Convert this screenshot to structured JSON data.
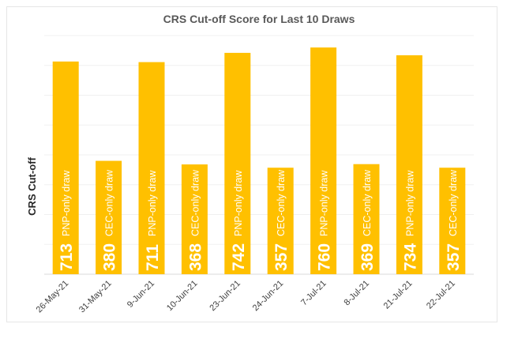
{
  "chart_data": {
    "type": "bar",
    "title": "CRS Cut-off Score for Last 10 Draws",
    "ylabel": "CRS Cut-off",
    "xlabel": "",
    "ylim": [
      0,
      800
    ],
    "grid": true,
    "bar_color": "#FFC000",
    "categories": [
      "26-May-21",
      "31-May-21",
      "9-Jun-21",
      "10-Jun-21",
      "23-Jun-21",
      "24-Jun-21",
      "7-Jul-21",
      "8-Jul-21",
      "21-Jul-21",
      "22-Jul-21"
    ],
    "values": [
      713,
      380,
      711,
      368,
      742,
      357,
      760,
      369,
      734,
      357
    ],
    "value_labels": [
      "713",
      "380",
      "711",
      "368",
      "742",
      "357",
      "760",
      "369",
      "734",
      "357"
    ],
    "annotations": [
      "PNP-only draw",
      "CEC-only draw",
      "PNP-only draw",
      "CEC-only draw",
      "PNP-only draw",
      "CEC-only draw",
      "PNP-only draw",
      "CEC-only draw",
      "PNP-only draw",
      "CEC-only draw"
    ]
  }
}
